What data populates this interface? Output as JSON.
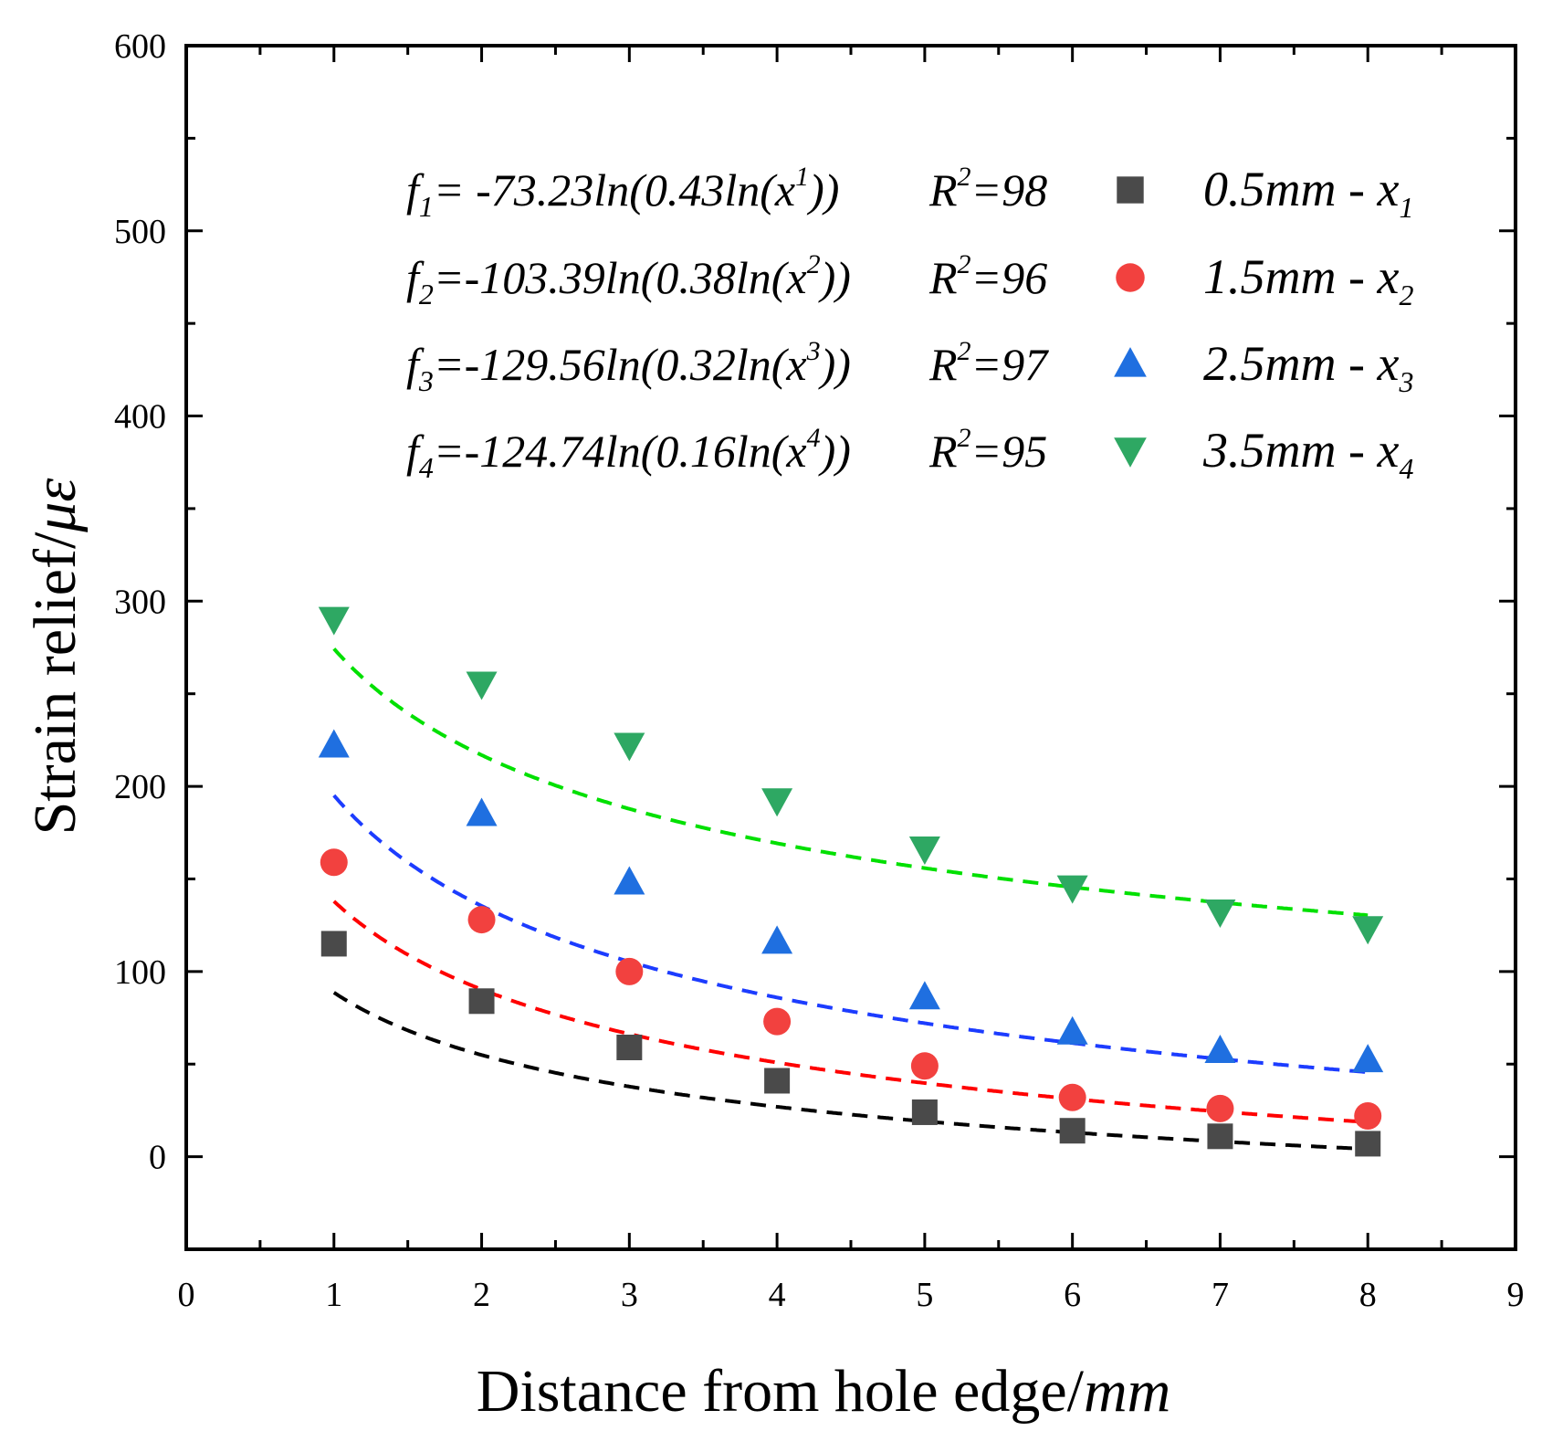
{
  "chart_data": {
    "type": "scatter",
    "xlabel": {
      "text": "Distance from hole edge/",
      "unit": "mm"
    },
    "ylabel": {
      "text": "Strain relief/",
      "unit": "με"
    },
    "xlim": [
      0,
      9
    ],
    "ylim": [
      -50,
      600
    ],
    "x_ticks": [
      0,
      1,
      2,
      3,
      4,
      5,
      6,
      7,
      8,
      9
    ],
    "y_ticks": [
      0,
      100,
      200,
      300,
      400,
      500,
      600
    ],
    "x_tick_labels": [
      "0",
      "1",
      "2",
      "3",
      "4",
      "5",
      "6",
      "7",
      "8",
      "9"
    ],
    "y_tick_labels": [
      "0",
      "100",
      "200",
      "300",
      "400",
      "500",
      "600"
    ],
    "x": [
      1,
      2,
      3,
      4,
      5,
      6,
      7,
      8
    ],
    "series": [
      {
        "name": "0.5mm - x1",
        "label_main": "0.5mm - x",
        "label_sub": "1",
        "marker": "square",
        "color": "#4a4a4a",
        "fit_color": "#000000",
        "values": [
          115,
          84,
          59,
          41,
          24,
          14,
          11,
          7
        ],
        "fit": {
          "a": 73.23,
          "b": 0.43
        },
        "equation": {
          "f_sub": "1",
          "left": "= -73.23ln(0.43ln(x",
          "sup": "1",
          "right": "))",
          "r2_label": "R",
          "r2_sup": "2",
          "r2_value": "=98"
        }
      },
      {
        "name": "1.5mm - x2",
        "label_main": "1.5mm - x",
        "label_sub": "2",
        "marker": "circle",
        "color": "#f2413f",
        "fit_color": "#ff0000",
        "values": [
          159,
          128,
          100,
          73,
          49,
          32,
          26,
          22
        ],
        "fit": {
          "a": 103.39,
          "b": 0.38
        },
        "equation": {
          "f_sub": "2",
          "left": "=-103.39ln(0.38ln(x",
          "sup": "2",
          "right": "))",
          "r2_label": "R",
          "r2_sup": "2",
          "r2_value": "=96"
        }
      },
      {
        "name": "2.5mm - x3",
        "label_main": "2.5mm - x",
        "label_sub": "3",
        "marker": "triangle-up",
        "color": "#1f6fe0",
        "fit_color": "#1c3cff",
        "values": [
          222,
          185,
          148,
          116,
          86,
          67,
          57,
          52
        ],
        "fit": {
          "a": 129.56,
          "b": 0.32
        },
        "equation": {
          "f_sub": "3",
          "left": "=-129.56ln(0.32ln(x",
          "sup": "3",
          "right": "))",
          "r2_label": "R",
          "r2_sup": "2",
          "r2_value": "=97"
        }
      },
      {
        "name": "3.5mm - x4",
        "label_main": "3.5mm - x",
        "label_sub": "4",
        "marker": "triangle-down",
        "color": "#2ea863",
        "fit_color": "#00e000",
        "values": [
          290,
          255,
          222,
          192,
          166,
          145,
          132,
          123
        ],
        "fit": {
          "a": 124.74,
          "b": 0.16
        },
        "equation": {
          "f_sub": "4",
          "left": "=-124.74ln(0.16ln(x",
          "sup": "4",
          "right": "))",
          "r2_label": "R",
          "r2_sup": "2",
          "r2_value": "=95"
        }
      }
    ],
    "equation_prefix": "f",
    "legend_position": "top-right"
  }
}
